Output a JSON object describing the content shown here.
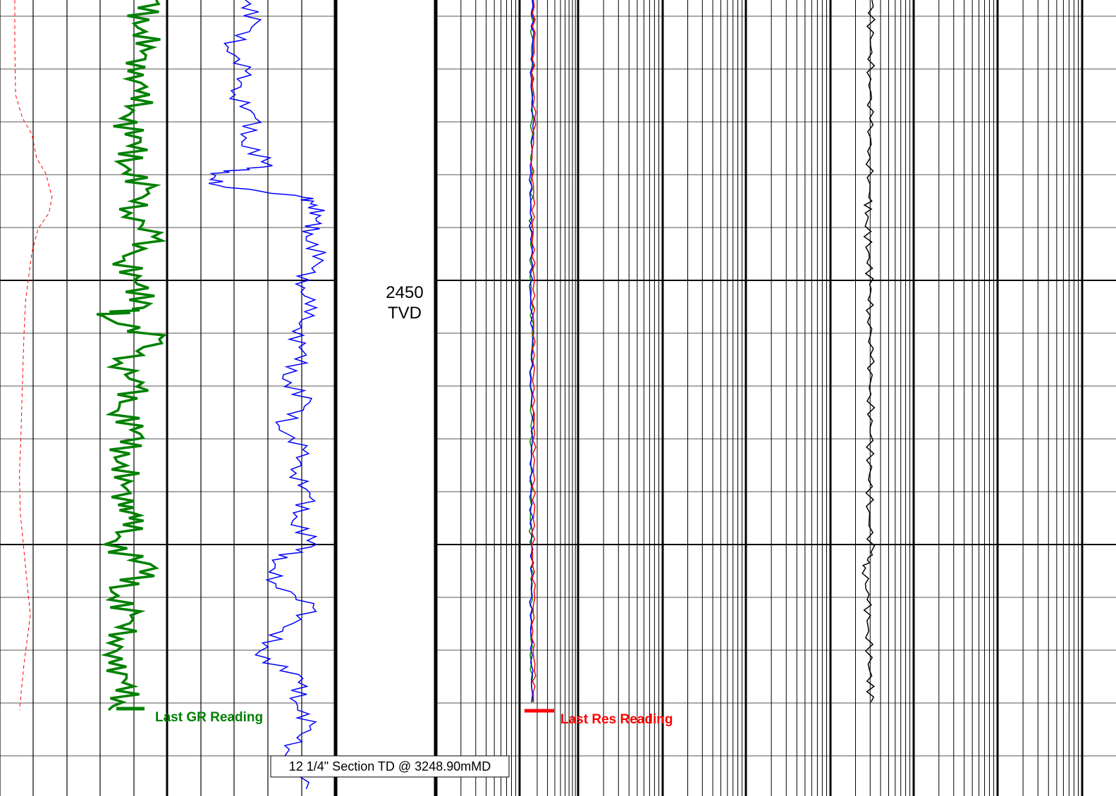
{
  "depth_track": {
    "depth_value": "2450",
    "depth_unit": "TVD"
  },
  "annotations": {
    "last_gr": "Last GR Reading",
    "last_res": "Last Res Reading",
    "section_td": "12 1/4\" Section TD @ 3248.90mMD"
  },
  "colors": {
    "gamma_ray": "#008000",
    "bulk_density": "#0000ff",
    "caliper_dashed": "#ff0000",
    "resistivity_deep": "#ff0000",
    "resistivity_medium": "#0000ff",
    "resistivity_shallow": "#008000",
    "resistivity_far": "#000000",
    "grid": "#000000"
  },
  "chart_data": {
    "type": "line",
    "tracks": [
      {
        "name": "track-1",
        "scale": "linear",
        "series": [
          "caliper",
          "gamma_ray",
          "bulk_density"
        ]
      },
      {
        "name": "depth-track",
        "scale": "none"
      },
      {
        "name": "track-2",
        "scale": "logarithmic",
        "decades": 4,
        "series": [
          "resistivity_shallow",
          "resistivity_medium",
          "resistivity_deep",
          "resistivity_far"
        ]
      }
    ],
    "depth_labels": [
      "2450"
    ],
    "depth_unit": "TVD",
    "grid": true,
    "series": [
      {
        "name": "caliper",
        "style": "dashed",
        "depth": [
          0,
          0.06,
          0.12,
          0.15,
          0.17,
          0.2,
          0.22,
          0.25,
          0.27,
          0.29,
          0.32,
          0.35,
          0.38,
          0.42,
          0.48,
          0.55,
          0.6,
          0.65,
          0.72,
          0.78,
          0.84,
          0.9
        ],
        "value": [
          0.5,
          0.5,
          0.55,
          1.0,
          1.6,
          1.9,
          2.5,
          2.9,
          2.7,
          2.0,
          1.6,
          1.4,
          1.2,
          1.1,
          1.0,
          0.9,
          0.8,
          0.85,
          1.2,
          1.5,
          1.1,
          0.8
        ]
      },
      {
        "name": "gamma_ray",
        "style": "thick",
        "depth": [
          0,
          0.03,
          0.06,
          0.09,
          0.12,
          0.15,
          0.18,
          0.21,
          0.24,
          0.27,
          0.3,
          0.33,
          0.36,
          0.39,
          0.4,
          0.43,
          0.46,
          0.49,
          0.52,
          0.55,
          0.58,
          0.61,
          0.64,
          0.66,
          0.69,
          0.72,
          0.75,
          0.78,
          0.81,
          0.84,
          0.87,
          0.9
        ],
        "value": [
          5.1,
          4.4,
          5.0,
          4.2,
          4.9,
          4.0,
          4.6,
          4.1,
          4.8,
          4.3,
          5.0,
          4.1,
          4.5,
          4.7,
          3.4,
          5.2,
          4.0,
          4.5,
          3.9,
          4.6,
          3.8,
          4.3,
          3.9,
          4.7,
          3.5,
          5.1,
          3.7,
          4.3,
          4.0,
          3.6,
          4.4,
          3.6
        ]
      },
      {
        "name": "bulk_density",
        "style": "thin",
        "depth": [
          0,
          0.03,
          0.06,
          0.09,
          0.12,
          0.15,
          0.18,
          0.21,
          0.22,
          0.235,
          0.25,
          0.26,
          0.28,
          0.3,
          0.33,
          0.36,
          0.39,
          0.42,
          0.45,
          0.48,
          0.51,
          0.54,
          0.57,
          0.6,
          0.63,
          0.66,
          0.69,
          0.71,
          0.74,
          0.77,
          0.8,
          0.83,
          0.86,
          0.89,
          0.92,
          0.95,
          1.0
        ],
        "value": [
          7.5,
          7.8,
          7.0,
          7.5,
          7.2,
          7.8,
          7.4,
          8.3,
          6.5,
          6.7,
          9.2,
          9.6,
          9.6,
          9.3,
          9.8,
          9.0,
          9.6,
          8.9,
          9.3,
          8.6,
          9.4,
          8.5,
          9.2,
          9.0,
          9.4,
          8.9,
          9.6,
          8.3,
          8.4,
          9.5,
          8.6,
          7.8,
          9.2,
          9.0,
          9.4,
          8.8,
          9.3
        ]
      },
      {
        "name": "resistivity_shallow",
        "style": "thin",
        "depth": [
          0,
          0.06,
          0.12,
          0.18,
          0.24,
          0.27,
          0.3,
          0.36,
          0.42,
          0.48,
          0.54,
          0.6,
          0.66,
          0.7,
          0.74,
          0.78,
          0.84,
          0.89
        ],
        "value": [
          0.6,
          0.5,
          0.6,
          0.45,
          0.55,
          0.4,
          0.5,
          0.45,
          0.55,
          0.5,
          0.45,
          0.5,
          0.4,
          0.5,
          0.55,
          0.45,
          0.5,
          0.55
        ]
      },
      {
        "name": "resistivity_medium",
        "style": "thin",
        "depth": [
          0,
          0.05,
          0.1,
          0.16,
          0.22,
          0.27,
          0.32,
          0.37,
          0.43,
          0.48,
          0.53,
          0.58,
          0.63,
          0.68,
          0.73,
          0.78,
          0.83,
          0.89
        ],
        "value": [
          0.55,
          0.6,
          0.5,
          0.6,
          0.45,
          0.4,
          0.55,
          0.4,
          0.6,
          0.45,
          0.6,
          0.5,
          0.45,
          0.5,
          0.55,
          0.4,
          0.55,
          0.5
        ]
      },
      {
        "name": "resistivity_deep",
        "style": "thin",
        "depth": [
          0,
          0.05,
          0.1,
          0.15,
          0.2,
          0.25,
          0.3,
          0.35,
          0.4,
          0.45,
          0.5,
          0.55,
          0.6,
          0.65,
          0.7,
          0.75,
          0.8,
          0.85,
          0.89
        ],
        "value": [
          0.65,
          0.7,
          0.6,
          0.75,
          0.55,
          0.65,
          0.6,
          0.7,
          0.62,
          0.72,
          0.6,
          0.75,
          0.65,
          0.7,
          0.58,
          0.7,
          0.6,
          0.72,
          0.65
        ]
      },
      {
        "name": "resistivity_far",
        "style": "thin",
        "depth": [
          0,
          0.05,
          0.1,
          0.15,
          0.2,
          0.25,
          0.28,
          0.32,
          0.36,
          0.4,
          0.45,
          0.5,
          0.55,
          0.6,
          0.65,
          0.7,
          0.72,
          0.76,
          0.8,
          0.85,
          0.89
        ],
        "value": [
          2.15,
          2.1,
          2.12,
          2.08,
          2.1,
          2.05,
          2.0,
          2.05,
          2.08,
          2.1,
          2.1,
          2.12,
          2.1,
          2.08,
          2.08,
          2.12,
          1.95,
          2.0,
          2.05,
          2.08,
          2.12
        ]
      }
    ]
  }
}
